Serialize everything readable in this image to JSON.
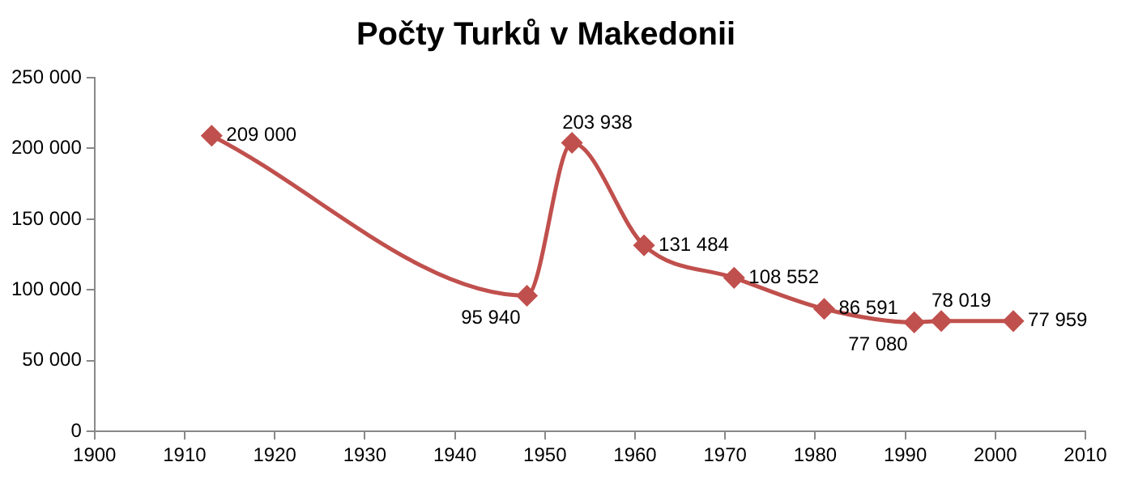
{
  "chart_data": {
    "type": "line",
    "title": "Počty Turků v Makedonii",
    "x": [
      1913,
      1948,
      1953,
      1961,
      1971,
      1981,
      1991,
      1994,
      2002
    ],
    "series": [
      {
        "color": "#c0504d",
        "values": [
          209000,
          95940,
          203938,
          131484,
          108552,
          86591,
          77080,
          78019,
          77959
        ],
        "value_labels": [
          "209 000",
          "95 940",
          "203 938",
          "131 484",
          "108 552",
          "86 591",
          "77 080",
          "78 019",
          "77 959"
        ]
      }
    ],
    "xlim": [
      1900,
      2010
    ],
    "xticks": [
      1900,
      1910,
      1920,
      1930,
      1940,
      1950,
      1960,
      1970,
      1980,
      1990,
      2000,
      2010
    ],
    "ylim": [
      0,
      250000
    ],
    "yticks": [
      0,
      {
        "value": 50000,
        "label": "50 000"
      },
      {
        "value": 100000,
        "label": "100 000"
      },
      {
        "value": 150000,
        "label": "150 000"
      },
      {
        "value": 200000,
        "label": "200 000"
      },
      {
        "value": 250000,
        "label": "250 000"
      }
    ],
    "grid": false,
    "legend": false,
    "marker": "diamond",
    "line_style": "solid"
  }
}
